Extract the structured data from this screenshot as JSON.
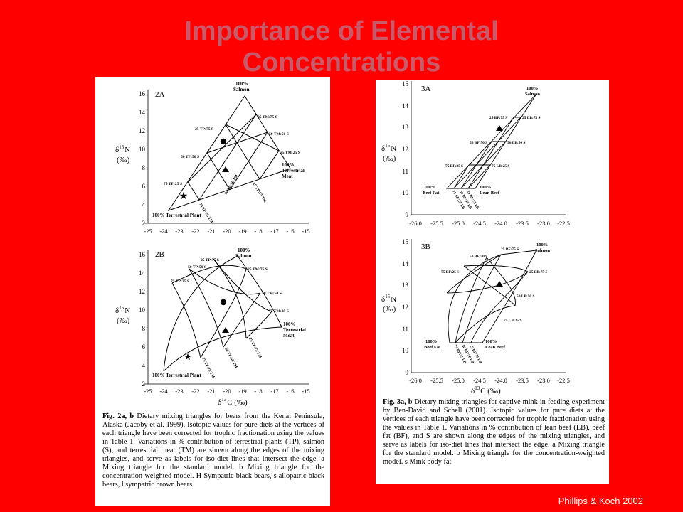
{
  "slide": {
    "title_line1": "Importance of Elemental",
    "title_line2": "Concentrations",
    "credit": "Phillips & Koch 2002"
  },
  "colors": {
    "background": "#ff0000",
    "title": "#c85a6a",
    "panel": "#ffffff"
  },
  "figure2": {
    "panel_a": {
      "label": "2A",
      "yticks": [
        "16",
        "14",
        "12",
        "10",
        "8",
        "6",
        "4",
        "2"
      ],
      "xticks": [
        "-25",
        "-24",
        "-23",
        "-22",
        "-21",
        "-20",
        "-19",
        "-18",
        "-17",
        "-16",
        "-15"
      ],
      "ylabel_d": "δ",
      "ylabel_sup": "15",
      "ylabel_n": "N",
      "ylabel_unit": "(‰)",
      "apex_salmon_pct": "100%",
      "apex_salmon": "Salmon",
      "apex_meat_pct": "100%",
      "apex_meat_1": "Terrestrial",
      "apex_meat_2": "Meat",
      "apex_plant": "100% Terrestrial Plant",
      "edge_labels": [
        "25 TM:75 S",
        "50 TM:50 S",
        "75 TM:25 S",
        "25 TP:75 S",
        "50 TP:50 S",
        "75 TP:25 S",
        "25 TP:75 TM",
        "50 TP:50 TM",
        "75 TP:25 TM"
      ]
    },
    "panel_b": {
      "label": "2B",
      "yticks": [
        "16",
        "14",
        "12",
        "10",
        "8",
        "6",
        "4",
        "2"
      ],
      "xticks": [
        "-25",
        "-24",
        "-23",
        "-22",
        "-21",
        "-20",
        "-19",
        "-18",
        "-17",
        "-16",
        "-15"
      ],
      "ylabel_d": "δ",
      "ylabel_sup": "15",
      "ylabel_n": "N",
      "ylabel_unit": "(‰)",
      "xlabel_d": "δ",
      "xlabel_sup": "13",
      "xlabel_c": "C (‰)",
      "apex_salmon_pct": "100%",
      "apex_salmon": "Salmon",
      "apex_meat_pct": "100%",
      "apex_meat_1": "Terrestrial",
      "apex_meat_2": "Meat",
      "apex_plant": "100% Terrestrial Plant",
      "edge_labels": [
        "25 TP:75 S",
        "50 TP:50 S",
        "75 TP:25 S",
        "25 TM:75 S",
        "50 TM:50 S",
        "75 TM:25 S",
        "25 TP:75 TM",
        "50 TP:50 TM",
        "75 TP:25 TM"
      ]
    },
    "caption_bold": "Fig. 2a, b",
    "caption_text": " Dietary mixing triangles for bears from the Kenai Peninsula, Alaska (Jacoby et al. 1999). Isotopic values for pure diets at the vertices of each triangle have been corrected for trophic fractionation using the values in Table 1. Variations in % contribution of terrestrial plants (TP), salmon (S), and terrestrial meat (TM) are shown along the edges of the mixing triangles, and serve as labels for iso-diet lines that intersect the edge. a Mixing triangle for the standard model. b Mixing triangle for the concentration-weighted model. H Sympatric black bears, s allopatric black bears, l sympatric brown bears"
  },
  "figure3": {
    "panel_a": {
      "label": "3A",
      "yticks": [
        "15",
        "14",
        "13",
        "12",
        "11",
        "10",
        "9"
      ],
      "xticks": [
        "-26.0",
        "-25.5",
        "-25.0",
        "-24.5",
        "-24.0",
        "-23.5",
        "-23.0",
        "-22.5"
      ],
      "ylabel_d": "δ",
      "ylabel_sup": "15",
      "ylabel_n": "N",
      "ylabel_unit": "(‰)",
      "apex_salmon_pct": "100%",
      "apex_salmon": "Salmon",
      "apex_bf_pct": "100%",
      "apex_bf": "Beef Fat",
      "apex_lb_pct": "100%",
      "apex_lb": "Lean Beef",
      "edge_labels": [
        "25 BF:75 S",
        "50 BF:50 S",
        "75 BF:25 S",
        "25 LB:75 S",
        "50 LB:50 S",
        "75 LB:25 S",
        "25 BF:75 LB",
        "50 BF:50 LB",
        "75 BF:25 LB"
      ]
    },
    "panel_b": {
      "label": "3B",
      "yticks": [
        "15",
        "14",
        "13",
        "12",
        "11",
        "10",
        "9"
      ],
      "xticks": [
        "-26.0",
        "-25.5",
        "-25.0",
        "-24.5",
        "-24.0",
        "-23.5",
        "-23.0",
        "-22.5"
      ],
      "ylabel_d": "δ",
      "ylabel_sup": "15",
      "ylabel_n": "N",
      "ylabel_unit": "(‰)",
      "xlabel_d": "δ",
      "xlabel_sup": "13",
      "xlabel_c": "C (‰)",
      "apex_salmon_pct": "100%",
      "apex_salmon": "Salmon",
      "apex_bf_pct": "100%",
      "apex_bf": "Beef Fat",
      "apex_lb_pct": "100%",
      "apex_lb": "Lean Beef",
      "edge_labels": [
        "25 BF:75 S",
        "50 BF:50 S",
        "75 BF:25 S",
        "25 LB:75 S",
        "50 LB:50 S",
        "75 LB:25 S",
        "25 BF:75 LB",
        "50 BF:50 LB",
        "75 BF:25 LB"
      ]
    },
    "caption_bold": "Fig. 3a, b",
    "caption_text": " Dietary mixing triangles for captive mink in feeding experiment by Ben-David and Schell (2001). Isotopic values for pure diets at the vertices of each triangle have been corrected for trophic fractionation using the values in Table 1. Variations in % contribution of lean beef (LB), beef fat (BF), and S are shown along the edges of the mixing triangles, and serve as labels for iso-diet lines that intersect the edge. a Mixing triangle for the standard model. b Mixing triangle for the concentration-weighted model. s Mink body fat"
  }
}
